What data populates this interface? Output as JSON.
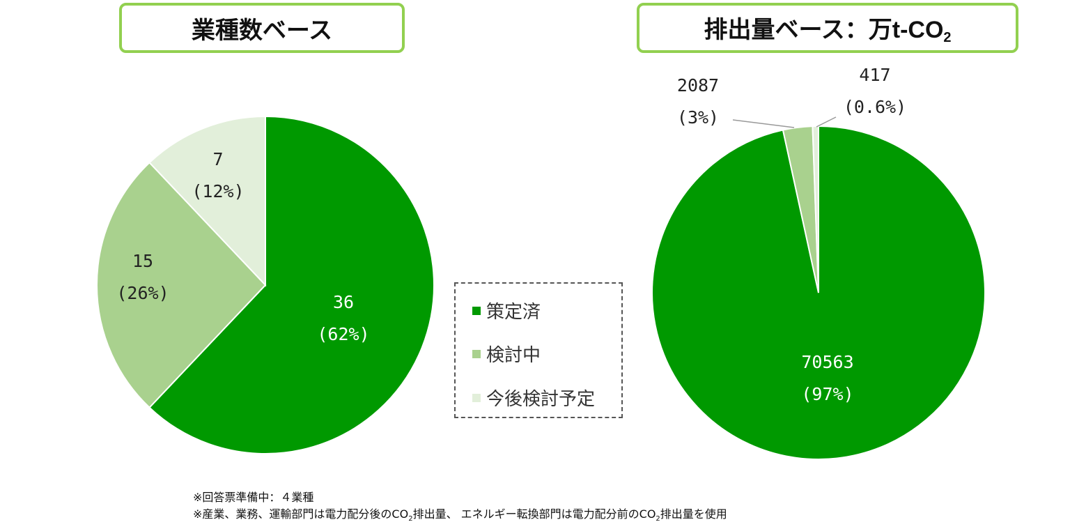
{
  "titles": {
    "left": "業種数ベース",
    "right_main": "排出量ベース：万t-CO",
    "right_sub": "2"
  },
  "legend": {
    "items": [
      {
        "label": "策定済",
        "color": "#009900"
      },
      {
        "label": "検討中",
        "color": "#a9d18e"
      },
      {
        "label": "今後検討予定",
        "color": "#e2efda"
      }
    ]
  },
  "footnotes": {
    "line1": "※回答票準備中：４業種",
    "line2_a": "※産業、業務、運輸部門は電力配分後のCO",
    "line2_b": "2",
    "line2_c": "排出量、 エネルギー転換部門は電力配分前のCO",
    "line2_d": "2",
    "line2_e": "排出量を使用"
  },
  "chart_data": [
    {
      "type": "pie",
      "title": "業種数ベース",
      "categories": [
        "策定済",
        "検討中",
        "今後検討予定"
      ],
      "values": [
        36,
        15,
        7
      ],
      "percent_labels": [
        "(62%)",
        "(26%)",
        "(12%)"
      ],
      "colors": [
        "#009900",
        "#a9d18e",
        "#e2efda"
      ]
    },
    {
      "type": "pie",
      "title": "排出量ベース：万t-CO2",
      "categories": [
        "策定済",
        "検討中",
        "今後検討予定"
      ],
      "values": [
        70563,
        2087,
        417
      ],
      "percent_labels": [
        "(97%)",
        "(3%)",
        "(0.6%)"
      ],
      "colors": [
        "#009900",
        "#a9d18e",
        "#e2efda"
      ]
    }
  ]
}
